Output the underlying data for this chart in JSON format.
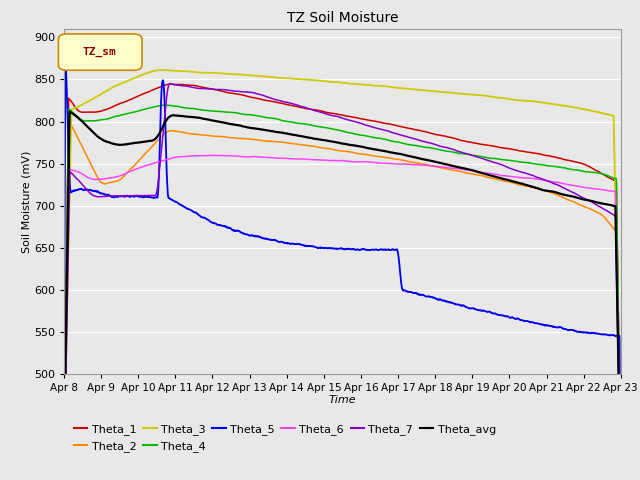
{
  "title": "TZ Soil Moisture",
  "ylabel": "Soil Moisture (mV)",
  "xlabel": "Time",
  "ylim": [
    500,
    910
  ],
  "yticks": [
    500,
    550,
    600,
    650,
    700,
    750,
    800,
    850,
    900
  ],
  "date_labels": [
    "Apr 8",
    "Apr 9",
    "Apr 10",
    "Apr 11",
    "Apr 12",
    "Apr 13",
    "Apr 14",
    "Apr 15",
    "Apr 16",
    "Apr 17",
    "Apr 18",
    "Apr 19",
    "Apr 20",
    "Apr 21",
    "Apr 22",
    "Apr 23"
  ],
  "bg_color": "#e8e8e8",
  "fig_color": "#e8e8e8",
  "legend_label": "TZ_sm",
  "series_colors": {
    "Theta_1": "#cc0000",
    "Theta_2": "#ff8800",
    "Theta_3": "#cccc00",
    "Theta_4": "#00bb00",
    "Theta_5": "#0000ee",
    "Theta_6": "#ff44ff",
    "Theta_7": "#8800cc",
    "Theta_avg": "#000000"
  }
}
